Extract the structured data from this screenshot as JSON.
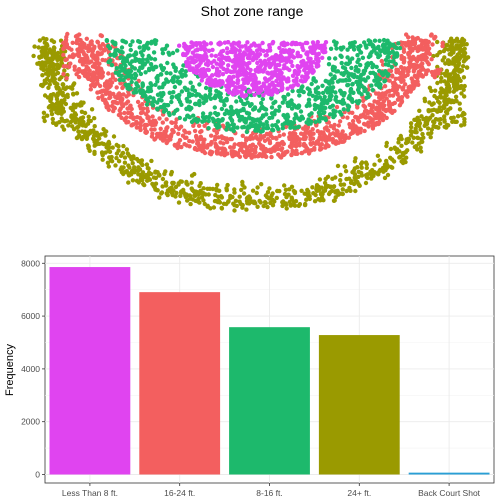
{
  "title": "Shot zone range",
  "chart_data": [
    {
      "type": "scatter",
      "title": "Shot zone range",
      "xlabel": "",
      "ylabel": "",
      "note": "court-position scatter of shot locations coloured by shot zone range; axes hidden",
      "zones": [
        {
          "zone": "Less Than 8 ft.",
          "color": "#e044f0"
        },
        {
          "zone": "16-24 ft.",
          "color": "#f35f5f"
        },
        {
          "zone": "8-16 ft.",
          "color": "#1db96c"
        },
        {
          "zone": "24+ ft.",
          "color": "#9a9a00"
        },
        {
          "zone": "Back Court Shot",
          "color": "#2a9fd6"
        }
      ]
    },
    {
      "type": "bar",
      "title": "",
      "xlabel": "",
      "ylabel": "Frequency",
      "categories": [
        "Less Than 8 ft.",
        "16-24 ft.",
        "8-16 ft.",
        "24+ ft.",
        "Back Court Shot"
      ],
      "values": [
        7857,
        6907,
        5580,
        5281,
        70
      ],
      "colors": [
        "#e044f0",
        "#f35f5f",
        "#1db96c",
        "#9a9a00",
        "#2a9fd6"
      ],
      "ylim": [
        0,
        8200
      ],
      "yticks": [
        0,
        2000,
        4000,
        6000,
        8000
      ],
      "grid": true
    }
  ]
}
